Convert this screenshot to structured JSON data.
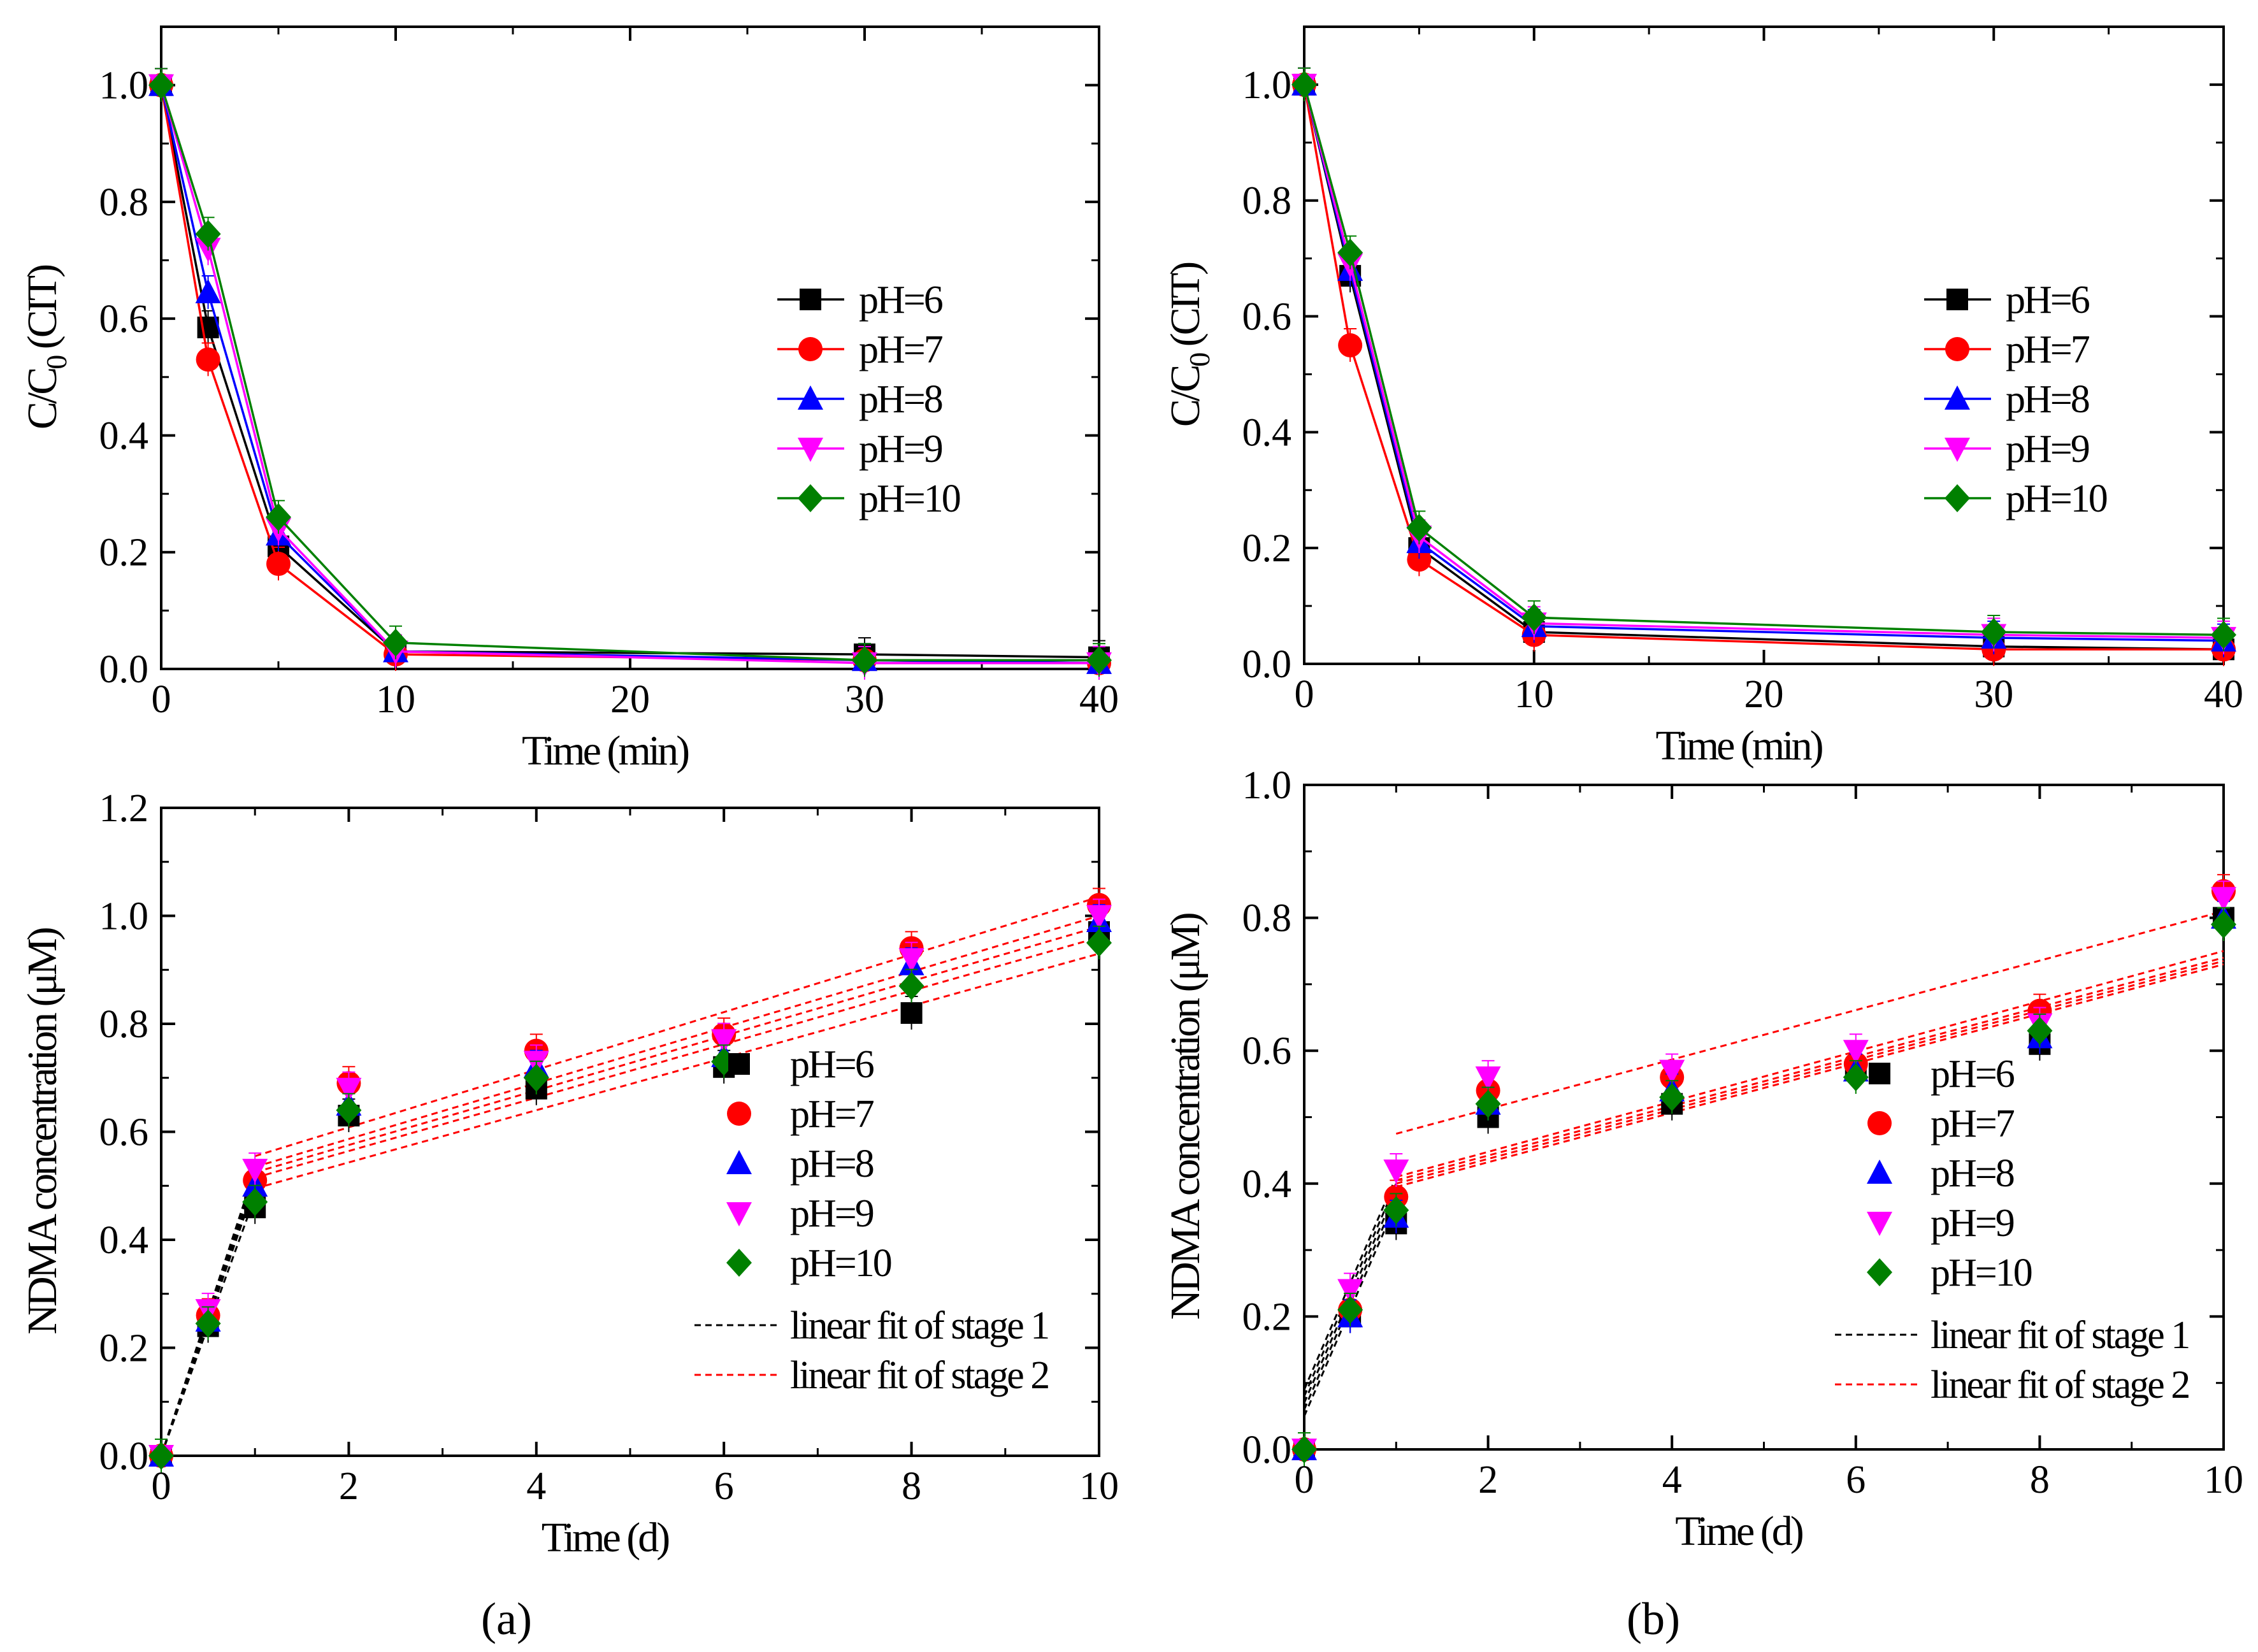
{
  "figure": {
    "panel_labels": [
      "(a)",
      "(b)"
    ]
  },
  "series_styles": [
    {
      "name": "pH=6",
      "color": "#000000",
      "marker": "square"
    },
    {
      "name": "pH=7",
      "color": "#ff0000",
      "marker": "circle"
    },
    {
      "name": "pH=8",
      "color": "#0000ff",
      "marker": "triangle-up"
    },
    {
      "name": "pH=9",
      "color": "#ff00ff",
      "marker": "triangle-down"
    },
    {
      "name": "pH=10",
      "color": "#008000",
      "marker": "diamond"
    }
  ],
  "fit_styles": {
    "stage1": {
      "label": "linear fit of stage 1",
      "color": "#000000"
    },
    "stage2": {
      "label": "linear fit of stage 2",
      "color": "#ff0000"
    }
  },
  "chart_data": [
    {
      "id": "a-top",
      "type": "line",
      "panel": "(a)",
      "ylabel": "C/C0 (CIT)",
      "xlabel": "Time (min)",
      "xlim": [
        0,
        40
      ],
      "ylim": [
        0,
        1.1
      ],
      "xticks": [
        0,
        10,
        20,
        30,
        40
      ],
      "yticks": [
        0.0,
        0.2,
        0.4,
        0.6,
        0.8,
        1.0
      ],
      "legend": "middle-right",
      "x": [
        0,
        2,
        5,
        10,
        30,
        40
      ],
      "series": [
        {
          "name": "pH=6",
          "values": [
            1.0,
            0.585,
            0.21,
            0.03,
            0.025,
            0.02
          ]
        },
        {
          "name": "pH=7",
          "values": [
            1.0,
            0.53,
            0.18,
            0.025,
            0.015,
            0.01
          ]
        },
        {
          "name": "pH=8",
          "values": [
            1.0,
            0.645,
            0.23,
            0.03,
            0.015,
            0.01
          ]
        },
        {
          "name": "pH=9",
          "values": [
            1.0,
            0.72,
            0.24,
            0.03,
            0.01,
            0.01
          ]
        },
        {
          "name": "pH=10",
          "values": [
            1.0,
            0.745,
            0.26,
            0.045,
            0.015,
            0.015
          ]
        }
      ]
    },
    {
      "id": "b-top",
      "type": "line",
      "panel": "(b)",
      "ylabel": "C/C0 (CIT)",
      "xlabel": "Time (min)",
      "xlim": [
        0,
        40
      ],
      "ylim": [
        0,
        1.1
      ],
      "xticks": [
        0,
        10,
        20,
        30,
        40
      ],
      "yticks": [
        0.0,
        0.2,
        0.4,
        0.6,
        0.8,
        1.0
      ],
      "legend": "middle-right",
      "x": [
        0,
        2,
        5,
        10,
        30,
        40
      ],
      "series": [
        {
          "name": "pH=6",
          "values": [
            1.0,
            0.67,
            0.2,
            0.055,
            0.03,
            0.025
          ]
        },
        {
          "name": "pH=7",
          "values": [
            1.0,
            0.55,
            0.18,
            0.05,
            0.025,
            0.025
          ]
        },
        {
          "name": "pH=8",
          "values": [
            1.0,
            0.68,
            0.21,
            0.065,
            0.045,
            0.04
          ]
        },
        {
          "name": "pH=9",
          "values": [
            1.0,
            0.69,
            0.22,
            0.07,
            0.05,
            0.045
          ]
        },
        {
          "name": "pH=10",
          "values": [
            1.0,
            0.71,
            0.235,
            0.08,
            0.055,
            0.05
          ]
        }
      ]
    },
    {
      "id": "a-bottom",
      "type": "scatter",
      "panel": "(a)",
      "ylabel": "NDMA  concentration (μM)",
      "xlabel": "Time (d)",
      "xlim": [
        0,
        10
      ],
      "ylim": [
        0,
        1.2
      ],
      "xticks": [
        0,
        2,
        4,
        6,
        8,
        10
      ],
      "yticks": [
        0.0,
        0.2,
        0.4,
        0.6,
        0.8,
        1.0,
        1.2
      ],
      "legend": "bottom-right",
      "x": [
        0,
        0.5,
        1,
        2,
        4,
        6,
        8,
        10
      ],
      "series": [
        {
          "name": "pH=6",
          "values": [
            0,
            0.24,
            0.46,
            0.63,
            0.68,
            0.72,
            0.82,
            0.97
          ]
        },
        {
          "name": "pH=7",
          "values": [
            0,
            0.26,
            0.51,
            0.69,
            0.75,
            0.78,
            0.94,
            1.02
          ]
        },
        {
          "name": "pH=8",
          "values": [
            0,
            0.25,
            0.5,
            0.65,
            0.72,
            0.74,
            0.91,
            0.99
          ]
        },
        {
          "name": "pH=9",
          "values": [
            0,
            0.27,
            0.53,
            0.68,
            0.73,
            0.77,
            0.92,
            1.0
          ]
        },
        {
          "name": "pH=10",
          "values": [
            0,
            0.245,
            0.47,
            0.64,
            0.7,
            0.73,
            0.87,
            0.95
          ]
        }
      ],
      "fits_stage1": [
        {
          "x": [
            0,
            1
          ],
          "y": [
            0,
            0.48
          ]
        },
        {
          "x": [
            0,
            1
          ],
          "y": [
            0,
            0.5
          ]
        },
        {
          "x": [
            0,
            1
          ],
          "y": [
            0,
            0.51
          ]
        },
        {
          "x": [
            0,
            1
          ],
          "y": [
            0,
            0.52
          ]
        },
        {
          "x": [
            0,
            1
          ],
          "y": [
            0,
            0.53
          ]
        }
      ],
      "fits_stage2": [
        {
          "x": [
            1,
            10
          ],
          "y": [
            0.495,
            0.93
          ]
        },
        {
          "x": [
            1,
            10
          ],
          "y": [
            0.515,
            0.96
          ]
        },
        {
          "x": [
            1,
            10
          ],
          "y": [
            0.525,
            0.98
          ]
        },
        {
          "x": [
            1,
            10
          ],
          "y": [
            0.535,
            1.0
          ]
        },
        {
          "x": [
            1,
            10
          ],
          "y": [
            0.555,
            1.035
          ]
        }
      ]
    },
    {
      "id": "b-bottom",
      "type": "scatter",
      "panel": "(b)",
      "ylabel": "NDMA  concentration (μM)",
      "xlabel": "Time (d)",
      "xlim": [
        0,
        10
      ],
      "ylim": [
        0,
        1.0
      ],
      "xticks": [
        0,
        2,
        4,
        6,
        8,
        10
      ],
      "yticks": [
        0.0,
        0.2,
        0.4,
        0.6,
        0.8,
        1.0
      ],
      "legend": "bottom-right",
      "x": [
        0,
        0.5,
        1,
        2,
        4,
        6,
        8,
        10
      ],
      "series": [
        {
          "name": "pH=6",
          "values": [
            0,
            0.2,
            0.34,
            0.5,
            0.52,
            0.57,
            0.61,
            0.8
          ]
        },
        {
          "name": "pH=7",
          "values": [
            0,
            0.21,
            0.38,
            0.54,
            0.56,
            0.58,
            0.66,
            0.84
          ]
        },
        {
          "name": "pH=8",
          "values": [
            0,
            0.2,
            0.35,
            0.52,
            0.54,
            0.57,
            0.62,
            0.8
          ]
        },
        {
          "name": "pH=9",
          "values": [
            0,
            0.24,
            0.42,
            0.56,
            0.57,
            0.6,
            0.64,
            0.83
          ]
        },
        {
          "name": "pH=10",
          "values": [
            0,
            0.21,
            0.36,
            0.52,
            0.53,
            0.56,
            0.63,
            0.79
          ]
        }
      ],
      "fits_stage1": [
        {
          "x": [
            0,
            1
          ],
          "y": [
            0.05,
            0.37
          ]
        },
        {
          "x": [
            0,
            1
          ],
          "y": [
            0.06,
            0.38
          ]
        },
        {
          "x": [
            0,
            1
          ],
          "y": [
            0.07,
            0.39
          ]
        },
        {
          "x": [
            0,
            1
          ],
          "y": [
            0.08,
            0.4
          ]
        },
        {
          "x": [
            0,
            1
          ],
          "y": [
            0.09,
            0.41
          ]
        }
      ],
      "fits_stage2": [
        {
          "x": [
            1,
            10
          ],
          "y": [
            0.395,
            0.73
          ]
        },
        {
          "x": [
            1,
            10
          ],
          "y": [
            0.4,
            0.735
          ]
        },
        {
          "x": [
            1,
            10
          ],
          "y": [
            0.405,
            0.74
          ]
        },
        {
          "x": [
            1,
            10
          ],
          "y": [
            0.41,
            0.75
          ]
        },
        {
          "x": [
            1,
            10
          ],
          "y": [
            0.475,
            0.81
          ]
        }
      ]
    }
  ]
}
